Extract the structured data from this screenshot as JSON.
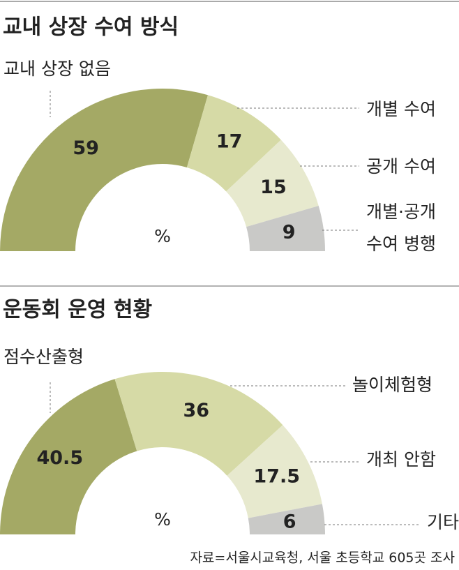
{
  "chart_data": [
    {
      "type": "pie",
      "title": "교내 상장 수여 방식",
      "unit": "%",
      "categories": [
        "교내 상장 없음",
        "개별 수여",
        "공개 수여",
        "개별·공개\n수여 병행"
      ],
      "values": [
        59,
        17,
        15,
        9
      ],
      "colors": [
        "#a4a965",
        "#d6daa6",
        "#e7e9ce",
        "#c9c9c7"
      ]
    },
    {
      "type": "pie",
      "title": "운동회 운영 현황",
      "unit": "%",
      "categories": [
        "점수산출형",
        "놀이체험형",
        "개최 안함",
        "기타"
      ],
      "values": [
        40.5,
        36,
        17.5,
        6
      ],
      "colors": [
        "#a4a965",
        "#d6daa6",
        "#e7e9ce",
        "#c9c9c7"
      ]
    }
  ],
  "source": "자료=서울시교육청, 서울 초등학교 605곳 조사"
}
